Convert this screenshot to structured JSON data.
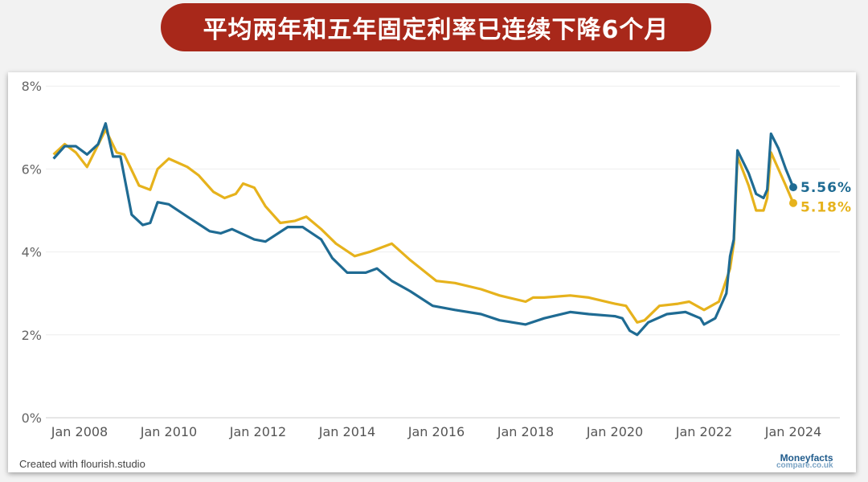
{
  "title": "平均两年和五年固定利率已连续下降6个月",
  "credit": "Created with flourish.studio",
  "logo": {
    "line1": "Moneyfacts",
    "line2": "compare.co.uk"
  },
  "colors": {
    "two_year": "#1f6b93",
    "five_year": "#e6b21c",
    "banner": "#a8281a"
  },
  "chart_data": {
    "type": "line",
    "ylim": [
      0,
      8
    ],
    "yticks": [
      "0%",
      "2%",
      "4%",
      "6%",
      "8%"
    ],
    "xticks": [
      "Jan 2008",
      "Jan 2010",
      "Jan 2012",
      "Jan 2014",
      "Jan 2016",
      "Jan 2018",
      "Jan 2020",
      "Jan 2022",
      "Jan 2024"
    ],
    "grid": true,
    "end_labels": [
      "5.56%",
      "5.18%"
    ],
    "series": [
      {
        "key": "two_year",
        "points": [
          [
            "2007-06",
            6.25
          ],
          [
            "2007-09",
            6.55
          ],
          [
            "2007-12",
            6.55
          ],
          [
            "2008-03",
            6.35
          ],
          [
            "2008-06",
            6.6
          ],
          [
            "2008-08",
            7.1
          ],
          [
            "2008-10",
            6.3
          ],
          [
            "2008-12",
            6.3
          ],
          [
            "2009-03",
            4.9
          ],
          [
            "2009-06",
            4.65
          ],
          [
            "2009-08",
            4.7
          ],
          [
            "2009-10",
            5.2
          ],
          [
            "2010-01",
            5.15
          ],
          [
            "2010-06",
            4.85
          ],
          [
            "2010-12",
            4.5
          ],
          [
            "2011-03",
            4.45
          ],
          [
            "2011-06",
            4.55
          ],
          [
            "2011-12",
            4.3
          ],
          [
            "2012-03",
            4.25
          ],
          [
            "2012-09",
            4.6
          ],
          [
            "2013-01",
            4.6
          ],
          [
            "2013-06",
            4.3
          ],
          [
            "2013-09",
            3.85
          ],
          [
            "2014-01",
            3.5
          ],
          [
            "2014-06",
            3.5
          ],
          [
            "2014-09",
            3.6
          ],
          [
            "2015-01",
            3.3
          ],
          [
            "2015-06",
            3.05
          ],
          [
            "2015-12",
            2.7
          ],
          [
            "2016-06",
            2.6
          ],
          [
            "2017-01",
            2.5
          ],
          [
            "2017-06",
            2.35
          ],
          [
            "2018-01",
            2.25
          ],
          [
            "2018-06",
            2.4
          ],
          [
            "2019-01",
            2.55
          ],
          [
            "2019-06",
            2.5
          ],
          [
            "2020-01",
            2.45
          ],
          [
            "2020-03",
            2.4
          ],
          [
            "2020-05",
            2.1
          ],
          [
            "2020-07",
            2.0
          ],
          [
            "2020-10",
            2.3
          ],
          [
            "2021-03",
            2.5
          ],
          [
            "2021-08",
            2.55
          ],
          [
            "2021-12",
            2.4
          ],
          [
            "2022-01",
            2.25
          ],
          [
            "2022-04",
            2.4
          ],
          [
            "2022-07",
            3.0
          ],
          [
            "2022-08",
            3.9
          ],
          [
            "2022-09",
            4.3
          ],
          [
            "2022-10",
            6.45
          ],
          [
            "2023-01",
            5.9
          ],
          [
            "2023-03",
            5.4
          ],
          [
            "2023-05",
            5.3
          ],
          [
            "2023-06",
            5.5
          ],
          [
            "2023-07",
            6.85
          ],
          [
            "2023-09",
            6.5
          ],
          [
            "2023-11",
            6.0
          ],
          [
            "2024-01",
            5.56
          ]
        ]
      },
      {
        "key": "five_year",
        "points": [
          [
            "2007-06",
            6.35
          ],
          [
            "2007-09",
            6.6
          ],
          [
            "2007-12",
            6.4
          ],
          [
            "2008-03",
            6.05
          ],
          [
            "2008-08",
            6.95
          ],
          [
            "2008-11",
            6.4
          ],
          [
            "2009-01",
            6.35
          ],
          [
            "2009-05",
            5.6
          ],
          [
            "2009-08",
            5.5
          ],
          [
            "2009-10",
            6.0
          ],
          [
            "2010-01",
            6.25
          ],
          [
            "2010-06",
            6.05
          ],
          [
            "2010-09",
            5.85
          ],
          [
            "2011-01",
            5.45
          ],
          [
            "2011-04",
            5.3
          ],
          [
            "2011-07",
            5.4
          ],
          [
            "2011-09",
            5.65
          ],
          [
            "2011-12",
            5.55
          ],
          [
            "2012-03",
            5.1
          ],
          [
            "2012-07",
            4.7
          ],
          [
            "2012-11",
            4.75
          ],
          [
            "2013-02",
            4.85
          ],
          [
            "2013-06",
            4.55
          ],
          [
            "2013-10",
            4.2
          ],
          [
            "2014-03",
            3.9
          ],
          [
            "2014-07",
            4.0
          ],
          [
            "2015-01",
            4.2
          ],
          [
            "2015-06",
            3.8
          ],
          [
            "2016-01",
            3.3
          ],
          [
            "2016-06",
            3.25
          ],
          [
            "2017-01",
            3.1
          ],
          [
            "2017-06",
            2.95
          ],
          [
            "2018-01",
            2.8
          ],
          [
            "2018-03",
            2.9
          ],
          [
            "2018-06",
            2.9
          ],
          [
            "2019-01",
            2.95
          ],
          [
            "2019-06",
            2.9
          ],
          [
            "2020-01",
            2.75
          ],
          [
            "2020-04",
            2.7
          ],
          [
            "2020-07",
            2.3
          ],
          [
            "2020-09",
            2.35
          ],
          [
            "2021-01",
            2.7
          ],
          [
            "2021-06",
            2.75
          ],
          [
            "2021-09",
            2.8
          ],
          [
            "2022-01",
            2.6
          ],
          [
            "2022-05",
            2.8
          ],
          [
            "2022-08",
            3.6
          ],
          [
            "2022-09",
            4.2
          ],
          [
            "2022-10",
            6.3
          ],
          [
            "2023-01",
            5.6
          ],
          [
            "2023-03",
            5.0
          ],
          [
            "2023-05",
            5.0
          ],
          [
            "2023-06",
            5.3
          ],
          [
            "2023-07",
            6.4
          ],
          [
            "2023-09",
            6.0
          ],
          [
            "2023-11",
            5.6
          ],
          [
            "2024-01",
            5.18
          ]
        ]
      }
    ]
  }
}
